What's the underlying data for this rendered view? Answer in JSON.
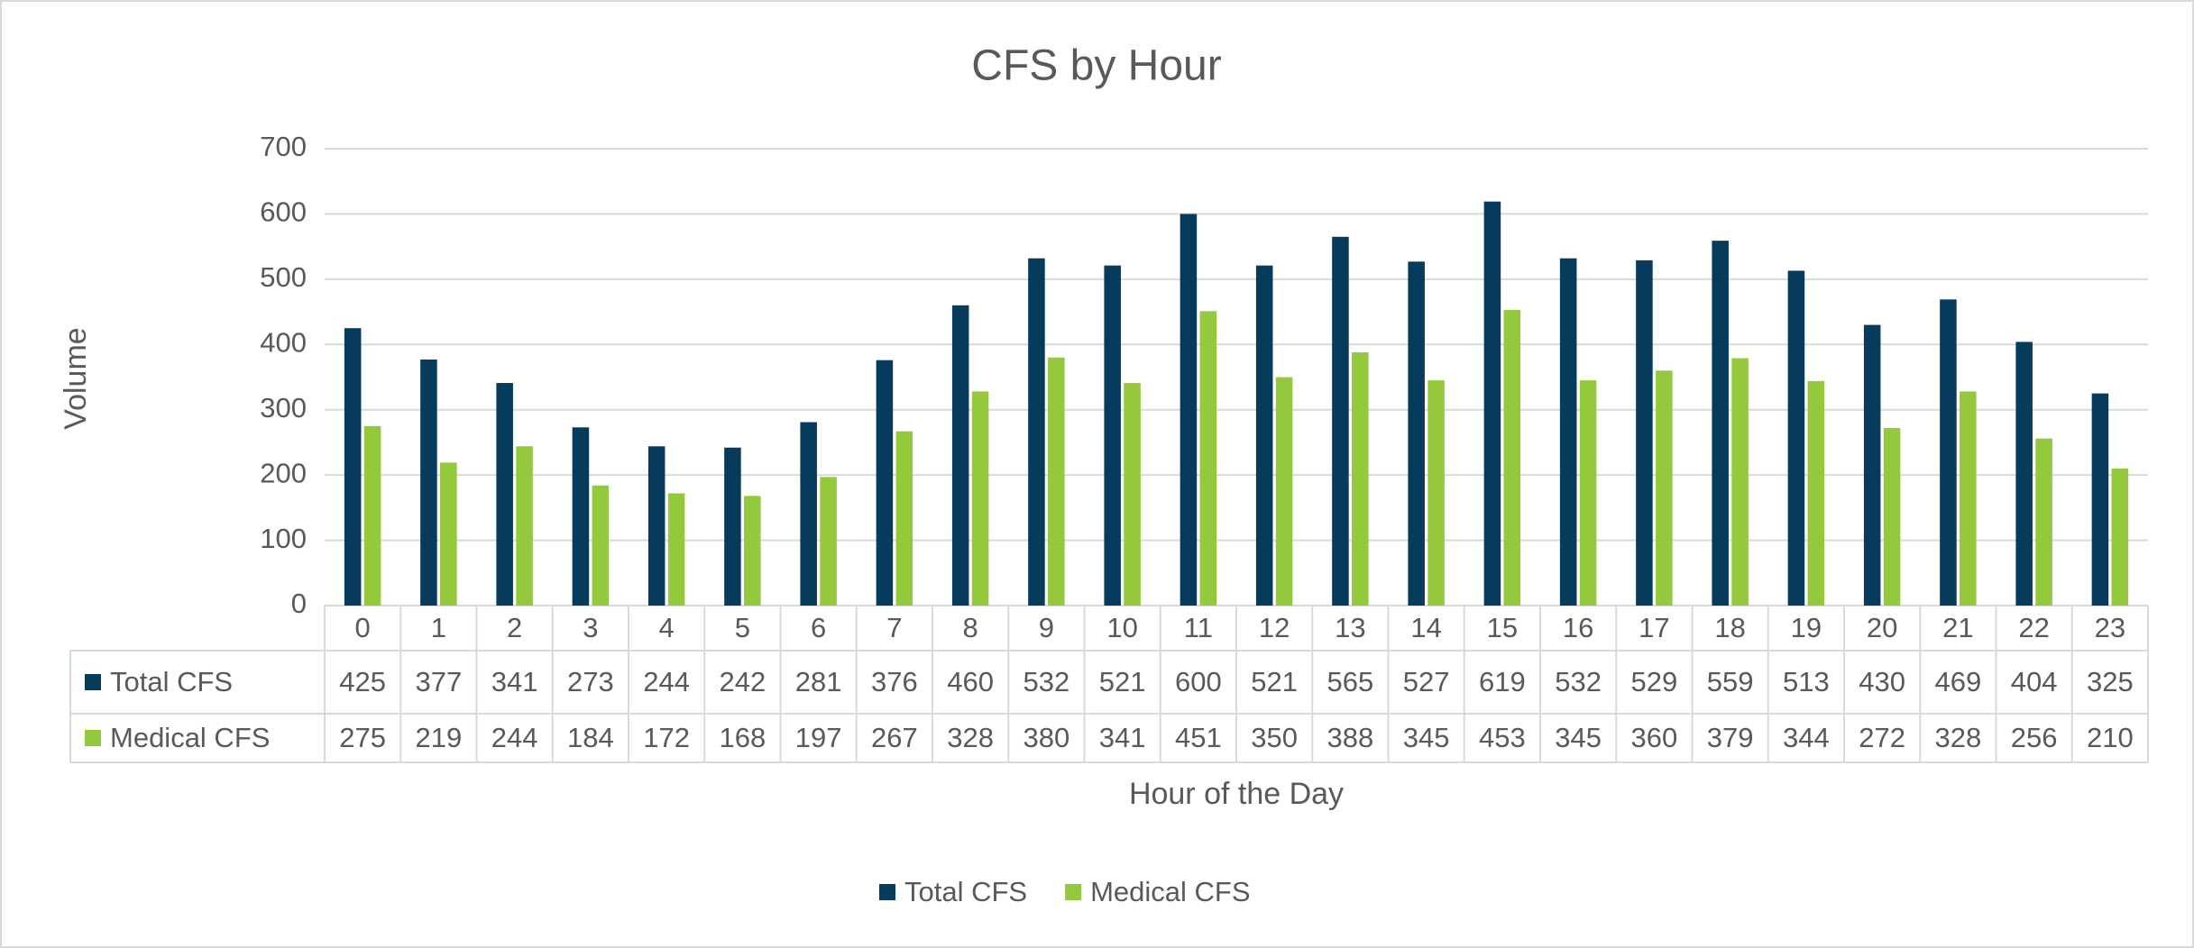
{
  "chart_data": {
    "type": "bar",
    "title": "CFS by Hour",
    "xlabel": "Hour of the Day",
    "ylabel": "Volume",
    "categories": [
      "0",
      "1",
      "2",
      "3",
      "4",
      "5",
      "6",
      "7",
      "8",
      "9",
      "10",
      "11",
      "12",
      "13",
      "14",
      "15",
      "16",
      "17",
      "18",
      "19",
      "20",
      "21",
      "22",
      "23"
    ],
    "series": [
      {
        "name": "Total CFS",
        "color": "#073b5c",
        "values": [
          425,
          377,
          341,
          273,
          244,
          242,
          281,
          376,
          460,
          532,
          521,
          600,
          521,
          565,
          527,
          619,
          532,
          529,
          559,
          513,
          430,
          469,
          404,
          325
        ]
      },
      {
        "name": "Medical CFS",
        "color": "#94c83d",
        "values": [
          275,
          219,
          244,
          184,
          172,
          168,
          197,
          267,
          328,
          380,
          341,
          451,
          350,
          388,
          345,
          453,
          345,
          360,
          379,
          344,
          272,
          328,
          256,
          210
        ]
      }
    ],
    "ylim": [
      0,
      700
    ],
    "yticks": [
      0,
      100,
      200,
      300,
      400,
      500,
      600,
      700
    ],
    "grid": true,
    "legend": "bottom"
  }
}
